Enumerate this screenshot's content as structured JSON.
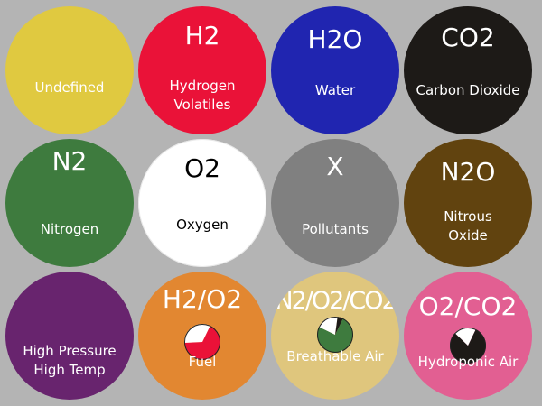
{
  "gases": [
    {
      "id": "undefined",
      "formula": "",
      "name": [
        "Undefined"
      ],
      "bg": "#e0c940",
      "fg": "#ffffff",
      "tight": false
    },
    {
      "id": "hydrogen",
      "formula": "H2",
      "name": [
        "Hydrogen",
        "Volatiles"
      ],
      "bg": "#ea1238",
      "fg": "#ffffff",
      "tight": false
    },
    {
      "id": "water",
      "formula": "H2O",
      "name": [
        "Water"
      ],
      "bg": "#2025b0",
      "fg": "#ffffff",
      "tight": false
    },
    {
      "id": "carbon-dioxide",
      "formula": "CO2",
      "name": [
        "Carbon Dioxide"
      ],
      "bg": "#1d1a17",
      "fg": "#ffffff",
      "tight": false
    },
    {
      "id": "nitrogen",
      "formula": "N2",
      "name": [
        "Nitrogen"
      ],
      "bg": "#3e7b3e",
      "fg": "#ffffff",
      "tight": false
    },
    {
      "id": "oxygen",
      "formula": "O2",
      "name": [
        "Oxygen"
      ],
      "bg": "#ffffff",
      "fg": "#000000",
      "tight": false
    },
    {
      "id": "pollutants",
      "formula": "X",
      "name": [
        "Pollutants"
      ],
      "bg": "#808080",
      "fg": "#ffffff",
      "tight": false
    },
    {
      "id": "nitrous-oxide",
      "formula": "N2O",
      "name": [
        "Nitrous",
        "Oxide"
      ],
      "bg": "#61430f",
      "fg": "#ffffff",
      "tight": false
    },
    {
      "id": "high-pressure",
      "formula": "",
      "name": [
        "High Pressure",
        "High Temp"
      ],
      "bg": "#68246e",
      "fg": "#ffffff",
      "tight": false
    },
    {
      "id": "fuel",
      "formula": "H2/O2",
      "name": [
        "Fuel"
      ],
      "bg": "#e28731",
      "fg": "#ffffff",
      "tight": false,
      "pie": [
        {
          "color": "#ea1238",
          "fraction": 0.67
        },
        {
          "color": "#ffffff",
          "fraction": 0.33
        }
      ]
    },
    {
      "id": "breathable-air",
      "formula": "N2/O2/CO2",
      "name": [
        "Breathable Air"
      ],
      "bg": "#dfc67d",
      "fg": "#ffffff",
      "tight": true,
      "pie": [
        {
          "color": "#3e7b3e",
          "fraction": 0.75
        },
        {
          "color": "#ffffff",
          "fraction": 0.2
        },
        {
          "color": "#1d1a17",
          "fraction": 0.05
        }
      ]
    },
    {
      "id": "hydroponic-air",
      "formula": "O2/CO2",
      "name": [
        "Hydroponic Air"
      ],
      "bg": "#e25f92",
      "fg": "#ffffff",
      "tight": false,
      "pie": [
        {
          "color": "#1d1a17",
          "fraction": 0.8
        },
        {
          "color": "#ffffff",
          "fraction": 0.2
        }
      ]
    }
  ]
}
